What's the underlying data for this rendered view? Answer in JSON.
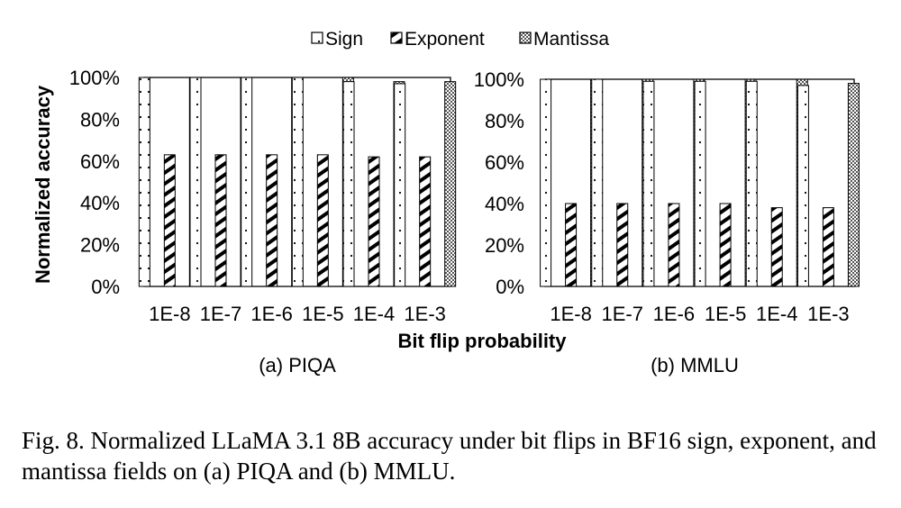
{
  "legend": {
    "items": [
      {
        "label": "Sign",
        "pattern": "sign-pattern"
      },
      {
        "label": "Exponent",
        "pattern": "exponent-pattern"
      },
      {
        "label": "Mantissa",
        "pattern": "mantissa-pattern"
      }
    ]
  },
  "shared": {
    "ylabel": "Normalized accuracy",
    "xlabel": "Bit flip probability"
  },
  "chart_data": [
    {
      "type": "bar",
      "title": "(a) PIQA",
      "categories": [
        "1E-8",
        "1E-7",
        "1E-6",
        "1E-5",
        "1E-4",
        "1E-3"
      ],
      "series": [
        {
          "name": "Sign",
          "values": [
            100,
            100,
            100,
            100,
            98,
            97
          ]
        },
        {
          "name": "Exponent",
          "values": [
            63,
            63,
            63,
            63,
            62,
            62
          ]
        },
        {
          "name": "Mantissa",
          "values": [
            100,
            100,
            100,
            100,
            98,
            98
          ]
        }
      ],
      "ylim": [
        0,
        100
      ],
      "yticks": [
        "0%",
        "20%",
        "40%",
        "60%",
        "80%",
        "100%"
      ],
      "xlabel": "Bit flip probability",
      "ylabel": "Normalized accuracy"
    },
    {
      "type": "bar",
      "title": "(b) MMLU",
      "categories": [
        "1E-8",
        "1E-7",
        "1E-6",
        "1E-5",
        "1E-4",
        "1E-3"
      ],
      "series": [
        {
          "name": "Sign",
          "values": [
            100,
            100,
            99,
            99,
            99,
            97
          ]
        },
        {
          "name": "Exponent",
          "values": [
            40,
            40,
            40,
            40,
            38,
            38
          ]
        },
        {
          "name": "Mantissa",
          "values": [
            100,
            100,
            100,
            100,
            100,
            98
          ]
        }
      ],
      "ylim": [
        0,
        100
      ],
      "yticks": [
        "0%",
        "20%",
        "40%",
        "60%",
        "80%",
        "100%"
      ],
      "xlabel": "",
      "ylabel": ""
    }
  ],
  "caption": "Fig. 8.  Normalized LLaMA 3.1 8B accuracy under bit flips in BF16 sign, exponent, and mantissa fields on (a) PIQA and (b) MMLU."
}
